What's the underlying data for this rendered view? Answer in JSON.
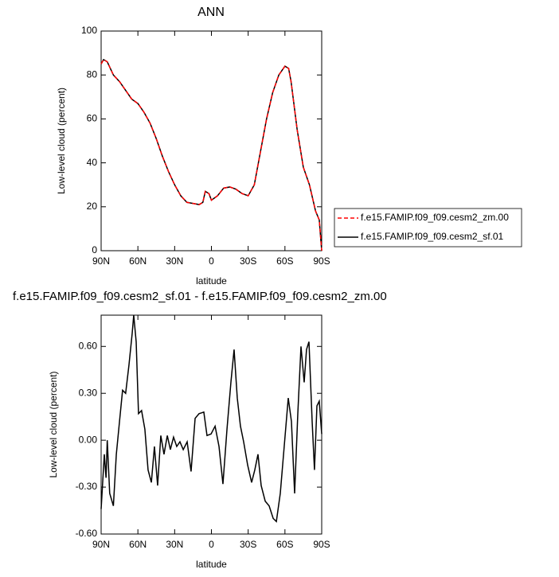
{
  "chart_data": [
    {
      "type": "line",
      "title": "ANN",
      "xlabel": "latitude",
      "ylabel": "Low-level cloud (percent)",
      "x": [
        90,
        88,
        85,
        80,
        75,
        70,
        65,
        60,
        55,
        50,
        45,
        40,
        35,
        30,
        25,
        20,
        15,
        10,
        7,
        5,
        2,
        0,
        -5,
        -10,
        -15,
        -20,
        -25,
        -30,
        -35,
        -40,
        -45,
        -50,
        -55,
        -60,
        -63,
        -65,
        -70,
        -75,
        -80,
        -85,
        -88,
        -90
      ],
      "series": [
        {
          "name": "f.e15.FAMIP.f09_f09.cesm2_zm.00",
          "color": "#ff0000",
          "line_style": "dashed",
          "values": [
            85,
            87,
            86,
            80,
            77,
            73,
            69,
            67,
            63,
            58,
            51,
            43,
            36,
            30,
            25,
            22,
            21.5,
            21,
            22,
            27,
            26,
            23,
            25,
            28.5,
            29,
            28,
            26,
            25,
            30,
            45,
            60,
            72,
            80,
            84,
            83,
            77,
            55,
            38,
            30,
            18,
            14,
            0
          ]
        },
        {
          "name": "f.e15.FAMIP.f09_f09.cesm2_sf.01",
          "color": "#000000",
          "line_style": "solid",
          "values": [
            85,
            87,
            86,
            80,
            77,
            73,
            69,
            67,
            63,
            58,
            51,
            43,
            36,
            30,
            25,
            22,
            21.5,
            21,
            22,
            27,
            26,
            23,
            25,
            28.5,
            29,
            28,
            26,
            25,
            30,
            45,
            60,
            72,
            80,
            84,
            83,
            77,
            55,
            38,
            30,
            18,
            14,
            0
          ]
        }
      ],
      "xlim": [
        90,
        -90
      ],
      "xticks": [
        {
          "value": 90,
          "label": "90N"
        },
        {
          "value": 60,
          "label": "60N"
        },
        {
          "value": 30,
          "label": "30N"
        },
        0,
        {
          "value": -30,
          "label": "30S"
        },
        {
          "value": -60,
          "label": "60S"
        },
        {
          "value": -90,
          "label": "90S"
        }
      ],
      "ylim": [
        0,
        100
      ],
      "yticks": [
        0,
        20,
        40,
        60,
        80,
        100
      ],
      "legend": "right"
    },
    {
      "type": "line",
      "title": "f.e15.FAMIP.f09_f09.cesm2_sf.01 - f.e15.FAMIP.f09_f09.cesm2_zm.00",
      "xlabel": "latitude",
      "ylabel": "Low-level cloud (percent)",
      "color": "#000000",
      "x": [
        90,
        87.4,
        86,
        85,
        83,
        80,
        77.6,
        75,
        72.5,
        70,
        67.3,
        64.7,
        63.4,
        61.4,
        59.5,
        57,
        54.3,
        51.7,
        49,
        46.5,
        43.9,
        41.3,
        38.7,
        36,
        33.5,
        30.9,
        28.3,
        25.7,
        23,
        19.8,
        16.6,
        13.3,
        10.1,
        6.2,
        3.6,
        0.3,
        -3,
        -6.2,
        -9.4,
        -12.7,
        -15.9,
        -18.5,
        -21.1,
        -23.7,
        -26.3,
        -29.6,
        -32.8,
        -35.4,
        -38,
        -40.6,
        -43.9,
        -47.1,
        -50.4,
        -53,
        -56.2,
        -59.4,
        -62.7,
        -65.3,
        -67.9,
        -70.5,
        -73.1,
        -75.7,
        -77.6,
        -79.6,
        -82.2,
        -84.1,
        -86.1,
        -88,
        -90
      ],
      "values": [
        -0.44,
        -0.09,
        -0.24,
        0,
        -0.34,
        -0.42,
        -0.09,
        0.12,
        0.32,
        0.3,
        0.48,
        0.68,
        0.8,
        0.63,
        0.17,
        0.19,
        0.07,
        -0.19,
        -0.27,
        -0.04,
        -0.29,
        0.03,
        -0.09,
        0.03,
        -0.06,
        0.02,
        -0.04,
        -0.01,
        -0.06,
        -0.01,
        -0.2,
        0.14,
        0.17,
        0.18,
        0.03,
        0.04,
        0.09,
        -0.04,
        -0.28,
        0.07,
        0.37,
        0.58,
        0.27,
        0.09,
        -0.01,
        -0.16,
        -0.27,
        -0.19,
        -0.09,
        -0.29,
        -0.39,
        -0.42,
        -0.5,
        -0.52,
        -0.34,
        -0.04,
        0.27,
        0.12,
        -0.34,
        0.17,
        0.6,
        0.37,
        0.58,
        0.63,
        0.12,
        -0.19,
        0.22,
        0.25,
        0.04
      ],
      "xlim": [
        90,
        -90
      ],
      "xticks": [
        {
          "value": 90,
          "label": "90N"
        },
        {
          "value": 60,
          "label": "60N"
        },
        {
          "value": 30,
          "label": "30N"
        },
        0,
        {
          "value": -30,
          "label": "30S"
        },
        {
          "value": -60,
          "label": "60S"
        },
        {
          "value": -90,
          "label": "90S"
        }
      ],
      "ylim": [
        -0.6,
        0.8
      ],
      "yticks": [
        {
          "value": -0.6,
          "label": "-0.60"
        },
        {
          "value": -0.3,
          "label": "-0.30"
        },
        {
          "value": 0,
          "label": "0.00"
        },
        {
          "value": 0.3,
          "label": "0.30"
        },
        {
          "value": 0.6,
          "label": "0.60"
        }
      ]
    }
  ]
}
